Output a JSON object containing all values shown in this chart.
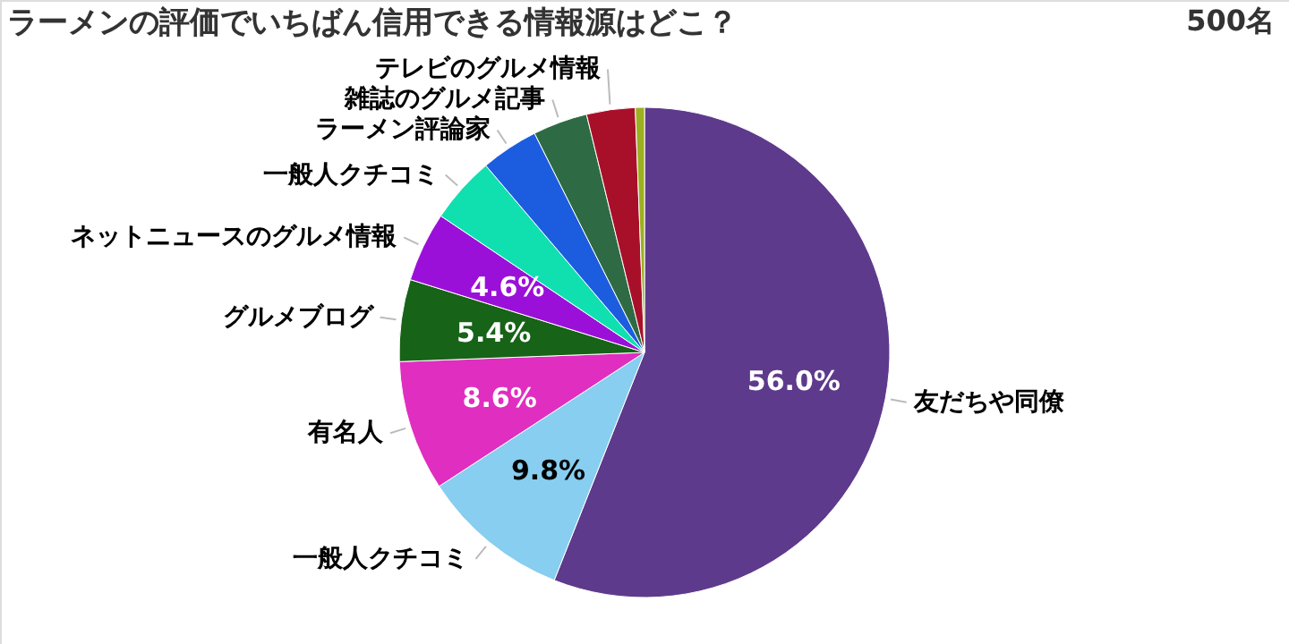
{
  "chart_data": {
    "type": "pie",
    "title": "ラーメンの評価でいちばん信用できる情報源はどこ？",
    "annotations": [
      "500名"
    ],
    "categories": [
      "友だちや同僚",
      "一般人クチコミ",
      "有名人",
      "グルメブログ",
      "ネットニュースのグルメ情報",
      "一般人クチコミ",
      "ラーメン評論家",
      "雑誌のグルメ記事",
      "テレビのグルメ情報",
      null
    ],
    "values": [
      56.0,
      9.8,
      8.6,
      5.4,
      4.6,
      4.4,
      3.8,
      3.6,
      3.2,
      0.6
    ],
    "colors": [
      "#5e3a8c",
      "#87cef0",
      "#e02ec0",
      "#176317",
      "#9b10d8",
      "#10e0b0",
      "#1c5de0",
      "#2e6b44",
      "#a8102a",
      "#9cb020"
    ],
    "value_labels": [
      "56.0%",
      "9.8%",
      "8.6%",
      "5.4%",
      "4.6%",
      null,
      null,
      null,
      null,
      null
    ]
  }
}
